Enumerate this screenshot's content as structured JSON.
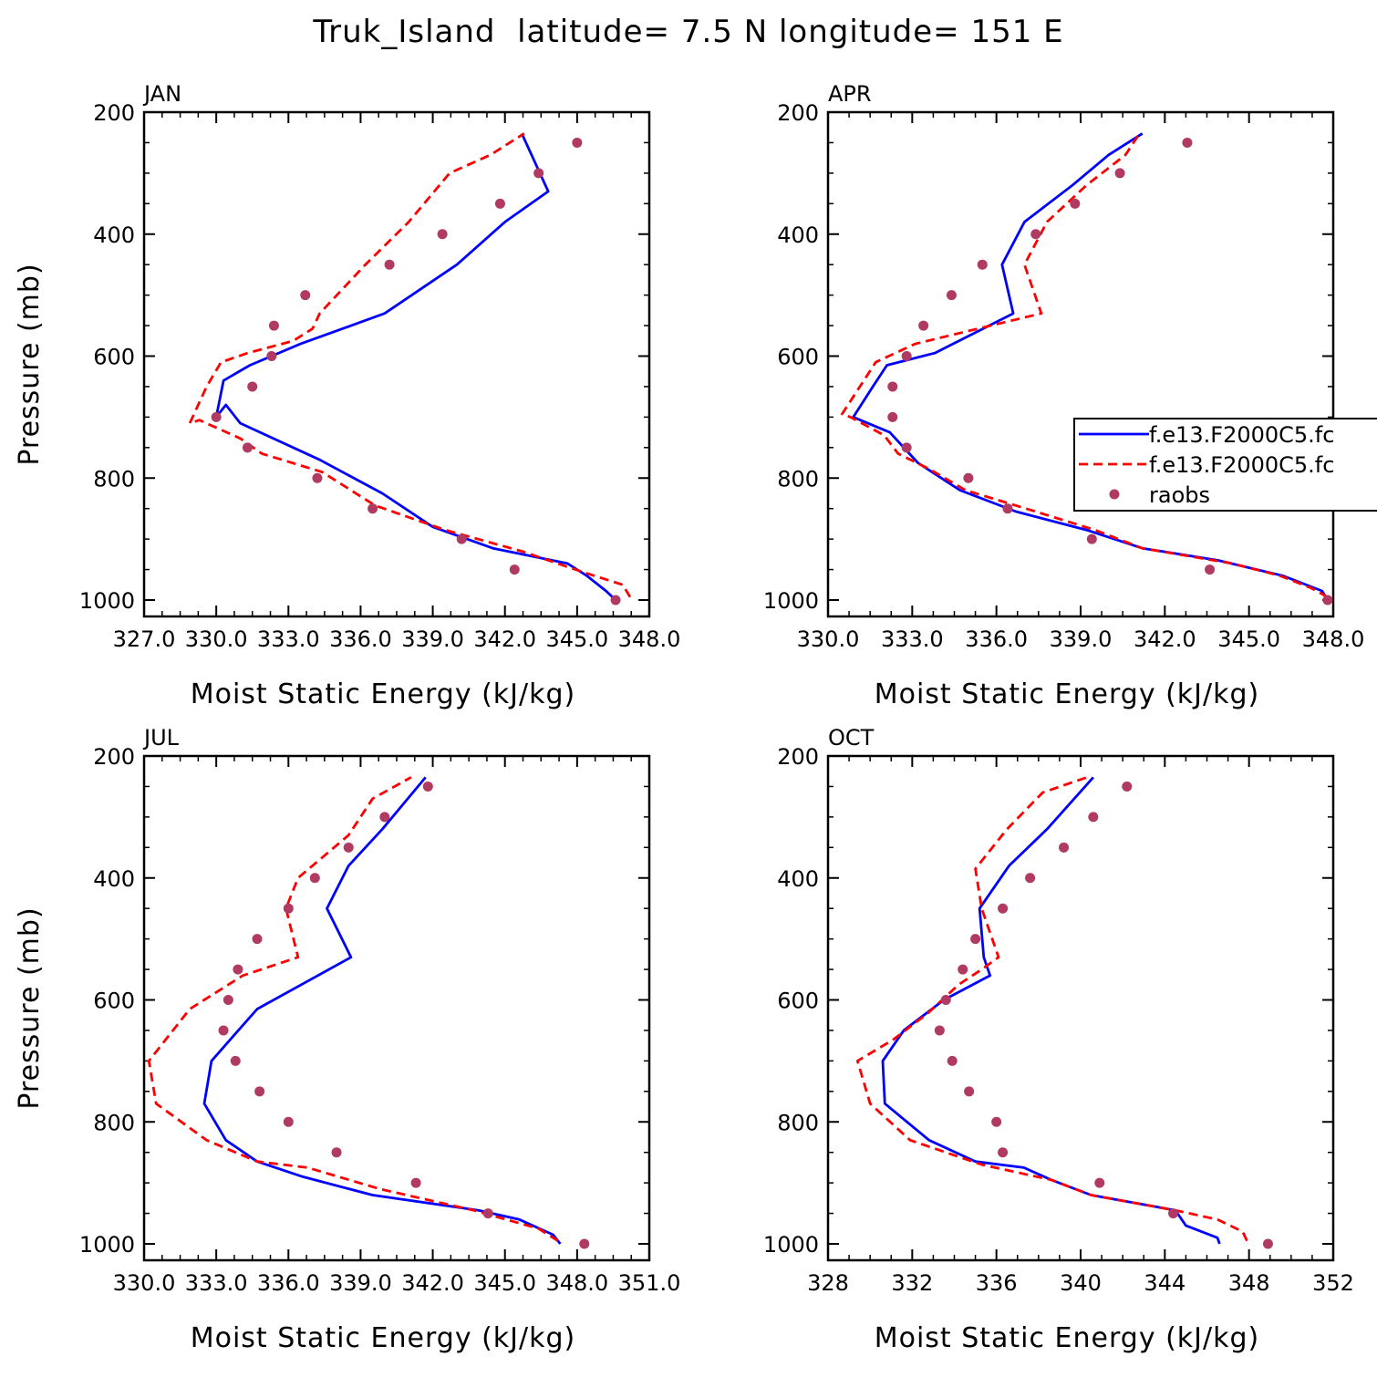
{
  "page_title": "Truk_Island  latitude= 7.5 N longitude= 151 E",
  "colors": {
    "model1": "#0000ff",
    "model2": "#ff0000",
    "obs": "#b03a62"
  },
  "legend": {
    "entries": [
      "f.e13.F2000C5.fc",
      "f.e13.F2000C5.fc",
      "raobs"
    ],
    "placement": "APR panel, right edge (clipped)"
  },
  "chart_data": [
    {
      "type": "line",
      "panel": "JAN",
      "xlabel": "Moist Static Energy (kJ/kg)",
      "ylabel": "Pressure (mb)",
      "xlim": [
        327.0,
        348.0
      ],
      "xticks": [
        "327.0",
        "330.0",
        "333.0",
        "336.0",
        "339.0",
        "342.0",
        "345.0",
        "348.0"
      ],
      "ylim": [
        1000,
        200
      ],
      "yticks": [
        "200",
        "400",
        "600",
        "800",
        "1000"
      ],
      "series": [
        {
          "name": "f.e13.F2000C5.fc",
          "style": "solid",
          "x": [
            346.6,
            346.2,
            345.4,
            344.6,
            341.5,
            339.0,
            336.9,
            334.3,
            331.0,
            330.4,
            330.0,
            330.3,
            331.4,
            333.5,
            337.0,
            340.0,
            342.0,
            343.8,
            342.7
          ],
          "y": [
            1000,
            985,
            960,
            940,
            915,
            880,
            825,
            770,
            710,
            680,
            700,
            640,
            615,
            580,
            530,
            450,
            380,
            330,
            235
          ]
        },
        {
          "name": "f.e13.F2000C5.fc",
          "style": "dashed",
          "x": [
            347.2,
            346.9,
            345.3,
            342.7,
            339.5,
            336.6,
            334.4,
            331.9,
            331.0,
            329.3,
            328.9,
            329.6,
            330.2,
            331.3,
            333.2,
            334.0,
            334.3,
            336.2,
            338.0,
            339.7,
            341.4,
            342.8
          ],
          "y": [
            995,
            975,
            955,
            920,
            885,
            845,
            790,
            760,
            735,
            705,
            710,
            650,
            610,
            595,
            575,
            555,
            530,
            450,
            380,
            300,
            270,
            235
          ]
        },
        {
          "name": "raobs",
          "style": "points",
          "x": [
            346.6,
            342.4,
            340.2,
            336.5,
            334.2,
            331.3,
            330.0,
            331.5,
            332.3,
            332.4,
            333.7,
            337.2,
            339.4,
            341.8,
            343.4,
            345.0
          ],
          "y": [
            1000,
            950,
            900,
            850,
            800,
            750,
            700,
            650,
            600,
            550,
            500,
            450,
            400,
            350,
            300,
            250
          ]
        }
      ]
    },
    {
      "type": "line",
      "panel": "APR",
      "xlabel": "Moist Static Energy (kJ/kg)",
      "ylabel": "",
      "xlim": [
        330.0,
        348.0
      ],
      "xticks": [
        "330.0",
        "333.0",
        "336.0",
        "339.0",
        "342.0",
        "345.0",
        "348.0"
      ],
      "ylim": [
        1000,
        200
      ],
      "yticks": [
        "200",
        "400",
        "600",
        "800",
        "1000"
      ],
      "series": [
        {
          "name": "f.e13.F2000C5.fc",
          "style": "solid",
          "x": [
            347.8,
            347.6,
            346.2,
            343.9,
            341.2,
            339.2,
            336.7,
            334.7,
            333.2,
            332.2,
            330.9,
            331.6,
            332.1,
            333.8,
            336.6,
            336.2,
            337.0,
            338.7,
            340.0,
            341.2
          ],
          "y": [
            1000,
            985,
            960,
            935,
            915,
            885,
            855,
            820,
            775,
            725,
            700,
            650,
            615,
            595,
            530,
            450,
            380,
            320,
            270,
            235
          ]
        },
        {
          "name": "f.e13.F2000C5.fc",
          "style": "dashed",
          "x": [
            347.8,
            347.2,
            346.1,
            344.4,
            341.2,
            339.5,
            337.4,
            334.9,
            333.6,
            332.5,
            332.0,
            330.8,
            330.5,
            331.7,
            333.1,
            337.6,
            337.0,
            337.8,
            339.2,
            340.6,
            341.1
          ],
          "y": [
            995,
            980,
            960,
            940,
            915,
            885,
            855,
            820,
            785,
            760,
            730,
            700,
            695,
            610,
            580,
            530,
            450,
            380,
            320,
            270,
            235
          ]
        },
        {
          "name": "raobs",
          "style": "points",
          "x": [
            347.8,
            343.6,
            339.4,
            336.4,
            335.0,
            332.8,
            332.3,
            332.3,
            332.8,
            333.4,
            334.4,
            335.5,
            337.4,
            338.8,
            340.4,
            342.8
          ],
          "y": [
            1000,
            950,
            900,
            850,
            800,
            750,
            700,
            650,
            600,
            550,
            500,
            450,
            400,
            350,
            300,
            250
          ]
        }
      ]
    },
    {
      "type": "line",
      "panel": "JUL",
      "xlabel": "Moist Static Energy (kJ/kg)",
      "ylabel": "Pressure (mb)",
      "xlim": [
        330.0,
        351.0
      ],
      "xticks": [
        "330.0",
        "333.0",
        "336.0",
        "339.0",
        "342.0",
        "345.0",
        "348.0",
        "351.0"
      ],
      "ylim": [
        1000,
        200
      ],
      "yticks": [
        "200",
        "400",
        "600",
        "800",
        "1000"
      ],
      "series": [
        {
          "name": "f.e13.F2000C5.fc",
          "style": "solid",
          "x": [
            347.3,
            347.0,
            345.6,
            343.9,
            339.5,
            336.6,
            334.7,
            333.4,
            332.5,
            332.8,
            334.7,
            338.6,
            337.6,
            338.5,
            339.9,
            341.7
          ],
          "y": [
            1000,
            985,
            960,
            945,
            920,
            890,
            865,
            830,
            770,
            700,
            615,
            530,
            450,
            380,
            320,
            235
          ]
        },
        {
          "name": "f.e13.F2000C5.fc",
          "style": "dashed",
          "x": [
            347.2,
            346.4,
            343.7,
            339.8,
            336.8,
            334.7,
            332.6,
            330.5,
            330.2,
            331.9,
            334.1,
            336.4,
            335.9,
            336.4,
            338.5,
            339.5,
            341.1
          ],
          "y": [
            995,
            975,
            945,
            910,
            875,
            865,
            830,
            770,
            700,
            615,
            560,
            530,
            450,
            400,
            330,
            270,
            235
          ]
        },
        {
          "name": "raobs",
          "style": "points",
          "x": [
            348.3,
            344.3,
            341.3,
            338.0,
            336.0,
            334.8,
            333.8,
            333.3,
            333.5,
            333.9,
            334.7,
            336.0,
            337.1,
            338.5,
            340.0,
            341.8
          ],
          "y": [
            1000,
            950,
            900,
            850,
            800,
            750,
            700,
            650,
            600,
            550,
            500,
            450,
            400,
            350,
            300,
            250
          ]
        }
      ]
    },
    {
      "type": "line",
      "panel": "OCT",
      "xlabel": "Moist Static Energy (kJ/kg)",
      "ylabel": "",
      "xlim": [
        328,
        352
      ],
      "xticks": [
        "328",
        "332",
        "336",
        "340",
        "344",
        "348",
        "352"
      ],
      "ylim": [
        1000,
        200
      ],
      "yticks": [
        "200",
        "400",
        "600",
        "800",
        "1000"
      ],
      "series": [
        {
          "name": "f.e13.F2000C5.fc",
          "style": "solid",
          "x": [
            346.6,
            346.5,
            345.0,
            344.5,
            340.5,
            338.6,
            337.3,
            335.0,
            332.8,
            330.7,
            330.6,
            330.6,
            331.6,
            333.5,
            335.7,
            335.4,
            335.2,
            336.6,
            338.4,
            340.6
          ],
          "y": [
            1000,
            990,
            970,
            945,
            920,
            895,
            875,
            865,
            830,
            770,
            700,
            700,
            650,
            600,
            560,
            530,
            450,
            380,
            320,
            235
          ]
        },
        {
          "name": "f.e13.F2000C5.fc",
          "style": "dashed",
          "x": [
            347.9,
            347.7,
            346.5,
            344.5,
            340.5,
            338.6,
            335.3,
            331.9,
            330.0,
            329.4,
            331.1,
            332.8,
            334.2,
            335.3,
            336.1,
            335.3,
            335.0,
            336.5,
            338.2,
            340.3
          ],
          "y": [
            995,
            980,
            960,
            945,
            920,
            895,
            870,
            830,
            770,
            700,
            665,
            620,
            575,
            550,
            530,
            450,
            385,
            320,
            260,
            235
          ]
        },
        {
          "name": "raobs",
          "style": "points",
          "x": [
            348.9,
            344.4,
            340.9,
            336.3,
            336.0,
            334.7,
            333.9,
            333.3,
            333.6,
            334.4,
            335.0,
            336.3,
            337.6,
            339.2,
            340.6,
            342.2
          ],
          "y": [
            1000,
            950,
            900,
            850,
            800,
            750,
            700,
            650,
            600,
            550,
            500,
            450,
            400,
            350,
            300,
            250
          ]
        }
      ]
    }
  ]
}
